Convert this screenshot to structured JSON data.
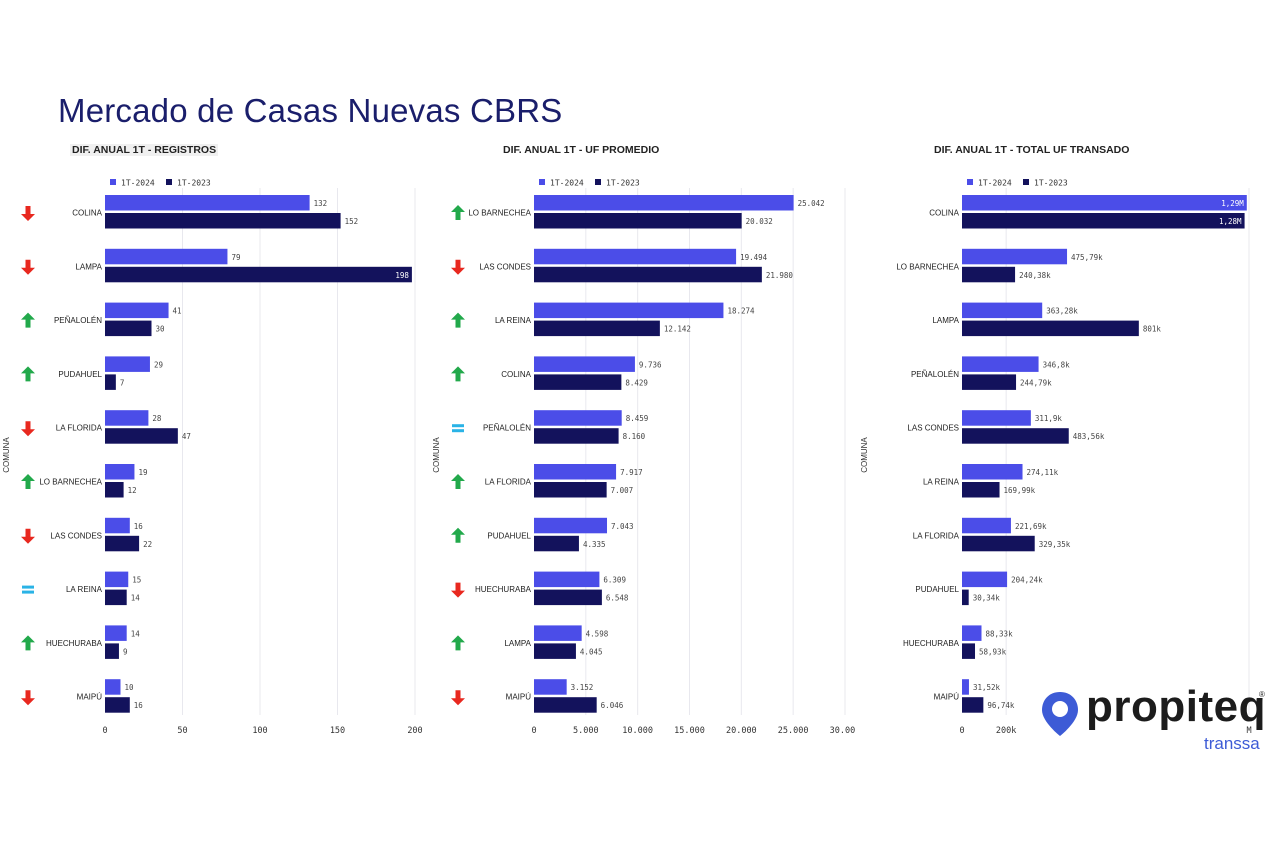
{
  "page": {
    "title": "Mercado de Casas Nuevas CBRS",
    "brand": "propiteq",
    "brand_reg": "®",
    "brand_sub": "transsa"
  },
  "colors": {
    "s2024": "#4b4de8",
    "s2023": "#13125c",
    "up": "#22a94b",
    "down": "#e8281f",
    "equal": "#2ab3e6",
    "grid": "#e8e8ee"
  },
  "chart_data": [
    {
      "type": "bar",
      "title": "DIF. ANUAL 1T - REGISTROS",
      "ylabel": "COMUNA",
      "legend": [
        "1T-2024",
        "1T-2023"
      ],
      "legend_position": "top-left",
      "xlim": [
        0,
        200
      ],
      "ticks": [
        0,
        50,
        100,
        150,
        200
      ],
      "tick_labels": [
        "0",
        "50",
        "100",
        "150",
        "200"
      ],
      "categories": [
        "COLINA",
        "LAMPA",
        "PEÑALOLÉN",
        "PUDAHUEL",
        "LA FLORIDA",
        "LO BARNECHEA",
        "LAS CONDES",
        "LA REINA",
        "HUECHURABA",
        "MAIPÚ"
      ],
      "trend": [
        "down",
        "down",
        "up",
        "up",
        "down",
        "up",
        "down",
        "equal",
        "up",
        "down"
      ],
      "series": [
        {
          "name": "1T-2024",
          "values": [
            132,
            79,
            41,
            29,
            28,
            19,
            16,
            15,
            14,
            10
          ],
          "labels": [
            "132",
            "79",
            "41",
            "29",
            "28",
            "19",
            "16",
            "15",
            "14",
            "10"
          ]
        },
        {
          "name": "1T-2023",
          "values": [
            152,
            198,
            30,
            7,
            47,
            12,
            22,
            14,
            9,
            16
          ],
          "labels": [
            "152",
            "198",
            "30",
            "7",
            "47",
            "12",
            "22",
            "14",
            "9",
            "16"
          ]
        }
      ]
    },
    {
      "type": "bar",
      "title": "DIF. ANUAL 1T - UF PROMEDIO",
      "ylabel": "COMUNA",
      "legend": [
        "1T-2024",
        "1T-2023"
      ],
      "legend_position": "top-left",
      "xlim": [
        0,
        30000
      ],
      "ticks": [
        0,
        5000,
        10000,
        15000,
        20000,
        25000,
        30000
      ],
      "tick_labels": [
        "0",
        "5.000",
        "10.000",
        "15.000",
        "20.000",
        "25.000",
        "30.000"
      ],
      "categories": [
        "LO BARNECHEA",
        "LAS CONDES",
        "LA REINA",
        "COLINA",
        "PEÑALOLÉN",
        "LA FLORIDA",
        "PUDAHUEL",
        "HUECHURABA",
        "LAMPA",
        "MAIPÚ"
      ],
      "trend": [
        "up",
        "down",
        "up",
        "up",
        "equal",
        "up",
        "up",
        "down",
        "up",
        "down"
      ],
      "series": [
        {
          "name": "1T-2024",
          "values": [
            25042,
            19494,
            18274,
            9736,
            8459,
            7917,
            7043,
            6309,
            4598,
            3152
          ],
          "labels": [
            "25.042",
            "19.494",
            "18.274",
            "9.736",
            "8.459",
            "7.917",
            "7.043",
            "6.309",
            "4.598",
            "3.152"
          ]
        },
        {
          "name": "1T-2023",
          "values": [
            20032,
            21980,
            12142,
            8429,
            8160,
            7007,
            4335,
            6548,
            4045,
            6046
          ],
          "labels": [
            "20.032",
            "21.980",
            "12.142",
            "8.429",
            "8.160",
            "7.007",
            "4.335",
            "6.548",
            "4.045",
            "6.046"
          ]
        }
      ]
    },
    {
      "type": "bar",
      "title": "DIF. ANUAL 1T - TOTAL UF TRANSADO",
      "ylabel": "COMUNA",
      "legend": [
        "1T-2024",
        "1T-2023"
      ],
      "legend_position": "top-left",
      "xlim": [
        0,
        1300000
      ],
      "ticks": [
        0,
        200000,
        1300000
      ],
      "tick_labels": [
        "0",
        "200k",
        "M"
      ],
      "categories": [
        "COLINA",
        "LO BARNECHEA",
        "LAMPA",
        "PEÑALOLÉN",
        "LAS CONDES",
        "LA REINA",
        "LA FLORIDA",
        "PUDAHUEL",
        "HUECHURABA",
        "MAIPÚ"
      ],
      "series": [
        {
          "name": "1T-2024",
          "values": [
            1290000,
            475790,
            363280,
            346800,
            311900,
            274110,
            221690,
            204240,
            88330,
            31520
          ],
          "labels": [
            "1,29M",
            "475,79k",
            "363,28k",
            "346,8k",
            "311,9k",
            "274,11k",
            "221,69k",
            "204,24k",
            "88,33k",
            "31,52k"
          ]
        },
        {
          "name": "1T-2023",
          "values": [
            1280000,
            240380,
            801000,
            244790,
            483560,
            169990,
            329350,
            30340,
            58930,
            96740
          ],
          "labels": [
            "1,28M",
            "240,38k",
            "801k",
            "244,79k",
            "483,56k",
            "169,99k",
            "329,35k",
            "30,34k",
            "58,93k",
            "96,74k"
          ]
        }
      ]
    }
  ]
}
